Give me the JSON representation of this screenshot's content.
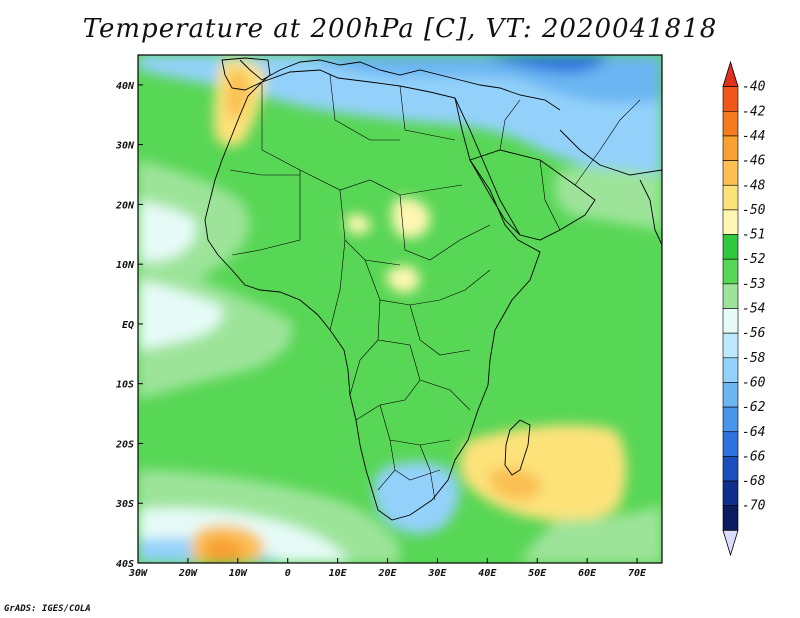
{
  "title": "Temperature at 200hPa [C], VT: 2020041818",
  "footer": "GrADS: IGES/COLA",
  "x_ticks": [
    "30W",
    "20W",
    "10W",
    "0",
    "10E",
    "20E",
    "30E",
    "40E",
    "50E",
    "60E",
    "70E"
  ],
  "y_ticks": [
    "40N",
    "30N",
    "20N",
    "10N",
    "EQ",
    "10S",
    "20S",
    "30S",
    "40S"
  ],
  "colorbar": {
    "levels": [
      "-40",
      "-42",
      "-44",
      "-46",
      "-48",
      "-50",
      "-51",
      "-52",
      "-53",
      "-54",
      "-56",
      "-58",
      "-60",
      "-62",
      "-64",
      "-66",
      "-68",
      "-70"
    ],
    "colors": [
      "#e0301e",
      "#f2571c",
      "#f57c1c",
      "#f8a032",
      "#fbbf52",
      "#fde27a",
      "#fff7b2",
      "#30c93e",
      "#58d655",
      "#9de49a",
      "#e6fbf7",
      "#bee8fb",
      "#93d1fa",
      "#6bb5f2",
      "#4896ec",
      "#2c73de",
      "#1c4fbd",
      "#102f8c",
      "#0c1a5e",
      "#dcdcfc"
    ]
  },
  "chart_data": {
    "type": "heatmap",
    "variable": "Temperature at 200hPa [C]",
    "valid_time": "2020041818",
    "xlim": [
      -30,
      75
    ],
    "ylim": [
      -40,
      45
    ],
    "levels": [
      -40,
      -42,
      -44,
      -46,
      -48,
      -50,
      -51,
      -52,
      -53,
      -54,
      -56,
      -58,
      -60,
      -62,
      -64,
      -66,
      -68,
      -70
    ]
  }
}
